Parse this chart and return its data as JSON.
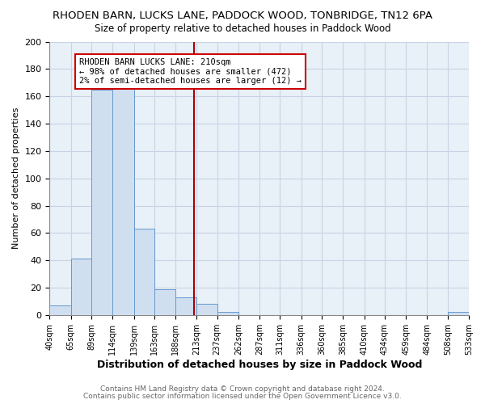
{
  "title": "RHODEN BARN, LUCKS LANE, PADDOCK WOOD, TONBRIDGE, TN12 6PA",
  "subtitle": "Size of property relative to detached houses in Paddock Wood",
  "xlabel": "Distribution of detached houses by size in Paddock Wood",
  "ylabel": "Number of detached properties",
  "bar_color": "#cfdff0",
  "bar_edge_color": "#6699cc",
  "bins": [
    40,
    65,
    89,
    114,
    139,
    163,
    188,
    213,
    237,
    262,
    287,
    311,
    336,
    360,
    385,
    410,
    434,
    459,
    484,
    508,
    533
  ],
  "heights": [
    7,
    41,
    165,
    170,
    63,
    19,
    13,
    8,
    2,
    0,
    0,
    0,
    0,
    0,
    0,
    0,
    0,
    0,
    0,
    2
  ],
  "tick_labels": [
    "40sqm",
    "65sqm",
    "89sqm",
    "114sqm",
    "139sqm",
    "163sqm",
    "188sqm",
    "213sqm",
    "237sqm",
    "262sqm",
    "287sqm",
    "311sqm",
    "336sqm",
    "360sqm",
    "385sqm",
    "410sqm",
    "434sqm",
    "459sqm",
    "484sqm",
    "508sqm",
    "533sqm"
  ],
  "ylim": [
    0,
    200
  ],
  "yticks": [
    0,
    20,
    40,
    60,
    80,
    100,
    120,
    140,
    160,
    180,
    200
  ],
  "vline_x": 210,
  "vline_color": "#aa0000",
  "annotation_text": "RHODEN BARN LUCKS LANE: 210sqm\n← 98% of detached houses are smaller (472)\n2% of semi-detached houses are larger (12) →",
  "annotation_box_color": "#ffffff",
  "annotation_box_edge": "#cc0000",
  "background_color": "#ffffff",
  "axes_facecolor": "#e8f0f8",
  "footer1": "Contains HM Land Registry data © Crown copyright and database right 2024.",
  "footer2": "Contains public sector information licensed under the Open Government Licence v3.0.",
  "grid_color": "#c8d4e4",
  "footer_color": "#666666"
}
